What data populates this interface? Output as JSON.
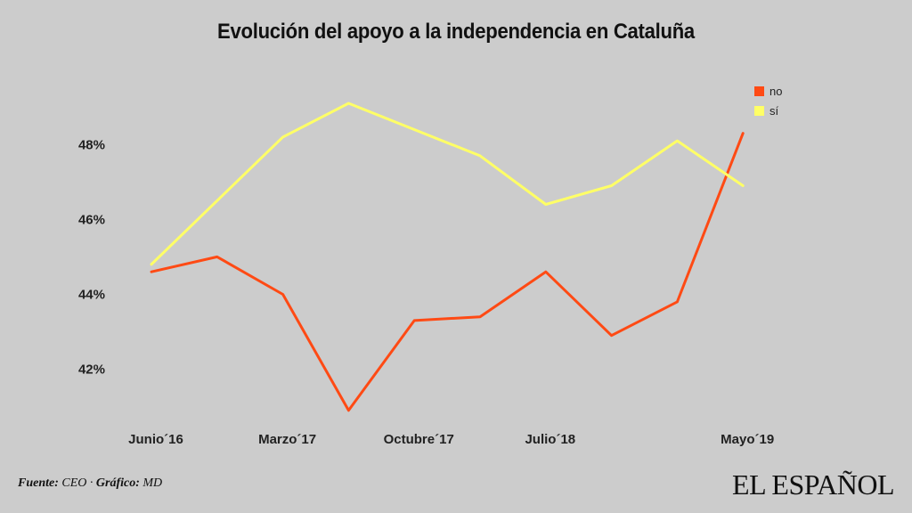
{
  "colors": {
    "no": "#ff4a14",
    "si": "#ffff66",
    "background": "#cccccc"
  },
  "source": {
    "label_fuente": "Fuente:",
    "fuente": "CEO",
    "sep": "·",
    "label_grafico": "Gráfico:",
    "grafico": "MD"
  },
  "brand": "EL ESPAÑOL",
  "chart_data": {
    "type": "line",
    "title": "Evolución del apoyo a la independencia en Cataluña",
    "xlabel": "",
    "ylabel": "",
    "ylim": [
      40.8,
      49.6
    ],
    "yticks": [
      42,
      44,
      46,
      48
    ],
    "ytick_labels": [
      "42%",
      "44%",
      "46%",
      "48%"
    ],
    "x": [
      0,
      1,
      2,
      3,
      4,
      5,
      6,
      7,
      8,
      9
    ],
    "xtick_positions": [
      0,
      2,
      4,
      6,
      9
    ],
    "xtick_labels": [
      "Junio´16",
      "Marzo´17",
      "Octubre´17",
      "Julio´18",
      "Mayo´19"
    ],
    "legend_position": "top-right",
    "series": [
      {
        "name": "no",
        "color_key": "no",
        "values": [
          44.6,
          45.0,
          44.0,
          40.9,
          43.3,
          43.4,
          44.6,
          42.9,
          43.8,
          48.3
        ]
      },
      {
        "name": "sí",
        "color_key": "si",
        "values": [
          44.8,
          46.5,
          48.2,
          49.1,
          48.4,
          47.7,
          46.4,
          46.9,
          48.1,
          46.9
        ]
      }
    ]
  }
}
